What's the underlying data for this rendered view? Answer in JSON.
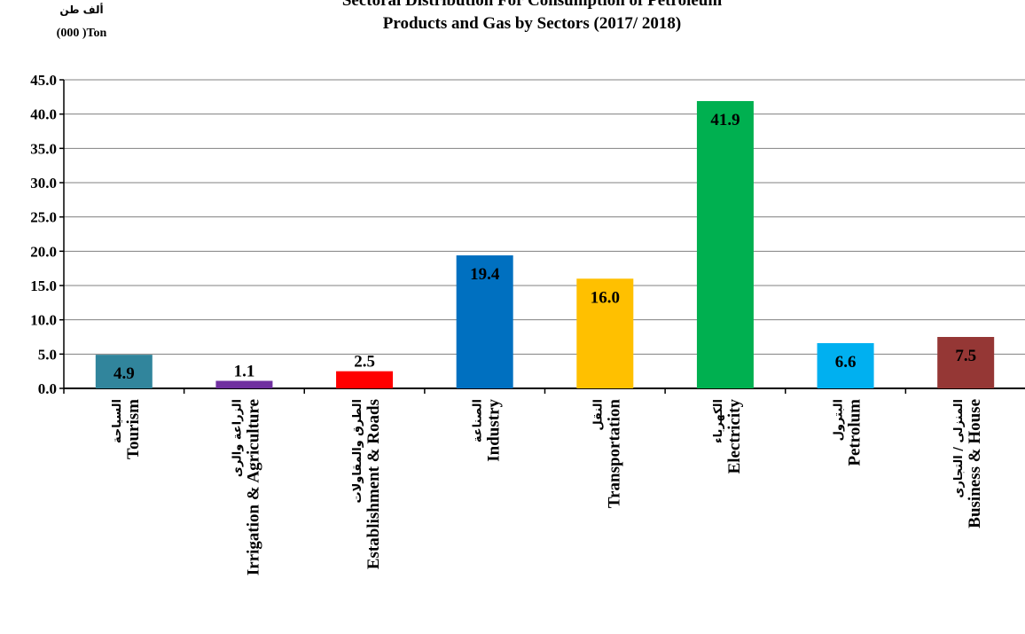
{
  "chart_data": {
    "type": "bar",
    "title_lines": [
      "Sectoral Distribution For Consumption of Petroleum",
      "Products and Gas  by Sectors (2017/ 2018)"
    ],
    "unit_label_ar": "ألف طن",
    "unit_label_en": "(000 )Ton",
    "ylim": [
      0,
      45
    ],
    "ytick_step": 5,
    "ytick_labels": [
      "0.0",
      "5.0",
      "10.0",
      "15.0",
      "20.0",
      "25.0",
      "30.0",
      "35.0",
      "40.0",
      "45.0"
    ],
    "grid": true,
    "legend": "none",
    "categories": [
      {
        "ar": "السياحة",
        "en": "Tourism"
      },
      {
        "ar": "الزراعة والرى",
        "en": "Irrigation & Agriculture"
      },
      {
        "ar": "الطرق والمقاولات",
        "en": "Establishment & Roads"
      },
      {
        "ar": "الصناعة",
        "en": "Industry"
      },
      {
        "ar": "النقل",
        "en": "Transportation"
      },
      {
        "ar": "الكهرباء",
        "en": "Electricity"
      },
      {
        "ar": "البترول",
        "en": "Petrolum"
      },
      {
        "ar": "المنزلى / التجارى",
        "en": "Business & House"
      }
    ],
    "values": [
      4.9,
      1.1,
      2.5,
      19.4,
      16.0,
      41.9,
      6.6,
      7.5
    ],
    "value_labels": [
      "4.9",
      "1.1",
      "2.5",
      "19.4",
      "16.0",
      "41.9",
      "6.6",
      "7.5"
    ],
    "colors": [
      "#31859c",
      "#7030a0",
      "#ff0000",
      "#0070c0",
      "#ffc000",
      "#00b050",
      "#00b0f0",
      "#953735"
    ]
  }
}
